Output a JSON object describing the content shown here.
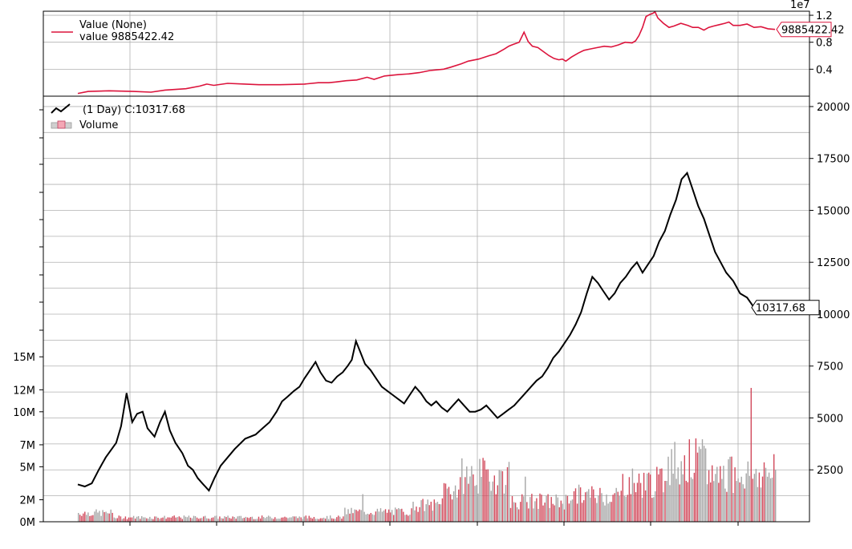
{
  "colors": {
    "value_line": "#dc143c",
    "price_line": "#000000",
    "volume_up": "#d1495b",
    "volume_down": "#a6a6a6",
    "grid": "#b0b0b0"
  },
  "chart_data": [
    {
      "type": "line",
      "panel": "value",
      "exponent_label": "1e7",
      "legend": {
        "title": "Value (None)",
        "series_label": "value 9885422.42",
        "placement": "top-left"
      },
      "last_value_tag": "9885422.42",
      "y_ticks": [
        {
          "v": 0.4,
          "label": "0.4"
        },
        {
          "v": 0.8,
          "label": "0.8"
        },
        {
          "v": 1.2,
          "label": "1.2"
        }
      ],
      "ylim": [
        0.0,
        1.26
      ],
      "x_range": [
        0,
        1000
      ],
      "grid": true,
      "series": [
        {
          "name": "value",
          "points": [
            [
              0,
              0.04
            ],
            [
              15,
              0.07
            ],
            [
              45,
              0.08
            ],
            [
              80,
              0.07
            ],
            [
              105,
              0.06
            ],
            [
              125,
              0.09
            ],
            [
              155,
              0.11
            ],
            [
              175,
              0.15
            ],
            [
              185,
              0.18
            ],
            [
              195,
              0.16
            ],
            [
              215,
              0.19
            ],
            [
              240,
              0.18
            ],
            [
              260,
              0.17
            ],
            [
              290,
              0.17
            ],
            [
              325,
              0.18
            ],
            [
              345,
              0.2
            ],
            [
              360,
              0.2
            ],
            [
              370,
              0.21
            ],
            [
              385,
              0.23
            ],
            [
              400,
              0.24
            ],
            [
              415,
              0.28
            ],
            [
              425,
              0.25
            ],
            [
              440,
              0.3
            ],
            [
              460,
              0.32
            ],
            [
              475,
              0.33
            ],
            [
              490,
              0.35
            ],
            [
              505,
              0.38
            ],
            [
              525,
              0.4
            ],
            [
              535,
              0.43
            ],
            [
              550,
              0.48
            ],
            [
              560,
              0.52
            ],
            [
              575,
              0.55
            ],
            [
              590,
              0.6
            ],
            [
              600,
              0.63
            ],
            [
              612,
              0.7
            ],
            [
              618,
              0.74
            ],
            [
              625,
              0.77
            ],
            [
              633,
              0.8
            ],
            [
              640,
              0.95
            ],
            [
              646,
              0.81
            ],
            [
              652,
              0.74
            ],
            [
              660,
              0.72
            ],
            [
              668,
              0.66
            ],
            [
              676,
              0.6
            ],
            [
              683,
              0.56
            ],
            [
              690,
              0.54
            ],
            [
              695,
              0.55
            ],
            [
              700,
              0.52
            ],
            [
              708,
              0.58
            ],
            [
              718,
              0.64
            ],
            [
              726,
              0.68
            ],
            [
              735,
              0.7
            ],
            [
              745,
              0.72
            ],
            [
              755,
              0.74
            ],
            [
              765,
              0.73
            ],
            [
              775,
              0.76
            ],
            [
              785,
              0.8
            ],
            [
              795,
              0.79
            ],
            [
              800,
              0.82
            ],
            [
              805,
              0.9
            ],
            [
              810,
              1.02
            ],
            [
              815,
              1.18
            ],
            [
              820,
              1.21
            ],
            [
              825,
              1.23
            ],
            [
              828,
              1.25
            ],
            [
              832,
              1.16
            ],
            [
              840,
              1.08
            ],
            [
              848,
              1.02
            ],
            [
              855,
              1.04
            ],
            [
              865,
              1.08
            ],
            [
              875,
              1.05
            ],
            [
              882,
              1.02
            ],
            [
              890,
              1.02
            ],
            [
              898,
              0.98
            ],
            [
              905,
              1.02
            ],
            [
              912,
              1.04
            ],
            [
              920,
              1.06
            ],
            [
              928,
              1.08
            ],
            [
              934,
              1.1
            ],
            [
              940,
              1.05
            ],
            [
              950,
              1.05
            ],
            [
              960,
              1.07
            ],
            [
              970,
              1.02
            ],
            [
              980,
              1.03
            ],
            [
              990,
              1.0
            ],
            [
              1000,
              0.99
            ]
          ]
        }
      ]
    },
    {
      "type": "line",
      "panel": "price",
      "legend": {
        "series_label": "(1 Day) C:10317.68",
        "volume_label": "Volume",
        "placement": "top-left"
      },
      "last_value_tag": "10317.68",
      "y_ticks": [
        {
          "v": 2500,
          "label": "2500"
        },
        {
          "v": 5000,
          "label": "5000"
        },
        {
          "v": 7500,
          "label": "7500"
        },
        {
          "v": 10000,
          "label": "10000"
        },
        {
          "v": 12500,
          "label": "12500"
        },
        {
          "v": 15000,
          "label": "15000"
        },
        {
          "v": 17500,
          "label": "17500"
        },
        {
          "v": 20000,
          "label": "20000"
        }
      ],
      "ylim": [
        0,
        20500
      ],
      "x_range": [
        0,
        1000
      ],
      "grid": true,
      "series": [
        {
          "name": "close",
          "points": [
            [
              0,
              1800
            ],
            [
              10,
              1700
            ],
            [
              20,
              1850
            ],
            [
              30,
              2500
            ],
            [
              40,
              3100
            ],
            [
              55,
              3800
            ],
            [
              62,
              4600
            ],
            [
              70,
              6200
            ],
            [
              78,
              4800
            ],
            [
              85,
              5200
            ],
            [
              93,
              5300
            ],
            [
              100,
              4500
            ],
            [
              110,
              4100
            ],
            [
              118,
              4800
            ],
            [
              125,
              5300
            ],
            [
              132,
              4400
            ],
            [
              140,
              3800
            ],
            [
              150,
              3300
            ],
            [
              158,
              2700
            ],
            [
              165,
              2500
            ],
            [
              172,
              2100
            ],
            [
              180,
              1800
            ],
            [
              188,
              1500
            ],
            [
              196,
              2100
            ],
            [
              205,
              2700
            ],
            [
              215,
              3100
            ],
            [
              225,
              3500
            ],
            [
              240,
              4000
            ],
            [
              255,
              4200
            ],
            [
              265,
              4500
            ],
            [
              275,
              4800
            ],
            [
              285,
              5300
            ],
            [
              293,
              5800
            ],
            [
              300,
              6000
            ],
            [
              310,
              6300
            ],
            [
              318,
              6500
            ],
            [
              325,
              6900
            ],
            [
              333,
              7300
            ],
            [
              341,
              7700
            ],
            [
              348,
              7200
            ],
            [
              356,
              6800
            ],
            [
              364,
              6700
            ],
            [
              372,
              7000
            ],
            [
              380,
              7200
            ],
            [
              387,
              7500
            ],
            [
              393,
              7800
            ],
            [
              399,
              8700
            ],
            [
              405,
              8200
            ],
            [
              412,
              7600
            ],
            [
              420,
              7300
            ],
            [
              428,
              6900
            ],
            [
              436,
              6500
            ],
            [
              444,
              6300
            ],
            [
              452,
              6100
            ],
            [
              460,
              5900
            ],
            [
              468,
              5700
            ],
            [
              476,
              6100
            ],
            [
              484,
              6500
            ],
            [
              492,
              6200
            ],
            [
              500,
              5800
            ],
            [
              507,
              5600
            ],
            [
              514,
              5800
            ],
            [
              522,
              5500
            ],
            [
              530,
              5300
            ],
            [
              538,
              5600
            ],
            [
              546,
              5900
            ],
            [
              554,
              5600
            ],
            [
              562,
              5300
            ],
            [
              570,
              5300
            ],
            [
              578,
              5400
            ],
            [
              586,
              5600
            ],
            [
              594,
              5300
            ],
            [
              602,
              5000
            ],
            [
              610,
              5200
            ],
            [
              618,
              5400
            ],
            [
              626,
              5600
            ],
            [
              634,
              5900
            ],
            [
              642,
              6200
            ],
            [
              650,
              6500
            ],
            [
              658,
              6800
            ],
            [
              666,
              7000
            ],
            [
              674,
              7400
            ],
            [
              682,
              7900
            ],
            [
              690,
              8200
            ],
            [
              698,
              8600
            ],
            [
              706,
              9000
            ],
            [
              714,
              9500
            ],
            [
              722,
              10100
            ],
            [
              730,
              11000
            ],
            [
              738,
              11800
            ],
            [
              746,
              11500
            ],
            [
              754,
              11100
            ],
            [
              762,
              10700
            ],
            [
              770,
              11000
            ],
            [
              778,
              11500
            ],
            [
              786,
              11800
            ],
            [
              794,
              12200
            ],
            [
              802,
              12500
            ],
            [
              810,
              12000
            ],
            [
              818,
              12400
            ],
            [
              826,
              12800
            ],
            [
              834,
              13500
            ],
            [
              842,
              14000
            ],
            [
              850,
              14800
            ],
            [
              858,
              15500
            ],
            [
              866,
              16500
            ],
            [
              874,
              16800
            ],
            [
              882,
              16000
            ],
            [
              890,
              15200
            ],
            [
              898,
              14600
            ],
            [
              906,
              13800
            ],
            [
              914,
              13000
            ],
            [
              922,
              12500
            ],
            [
              930,
              12000
            ],
            [
              940,
              11600
            ],
            [
              950,
              11000
            ],
            [
              960,
              10800
            ],
            [
              970,
              10317.68
            ]
          ]
        }
      ],
      "volume": {
        "y_ticks": [
          {
            "v": 0,
            "label": "0M"
          },
          {
            "v": 2,
            "label": "2M"
          },
          {
            "v": 5,
            "label": "5M"
          },
          {
            "v": 7,
            "label": "7M"
          },
          {
            "v": 10,
            "label": "10M"
          },
          {
            "v": 12,
            "label": "12M"
          },
          {
            "v": 15,
            "label": "15M"
          }
        ],
        "ylim": [
          0,
          38
        ]
      }
    }
  ]
}
